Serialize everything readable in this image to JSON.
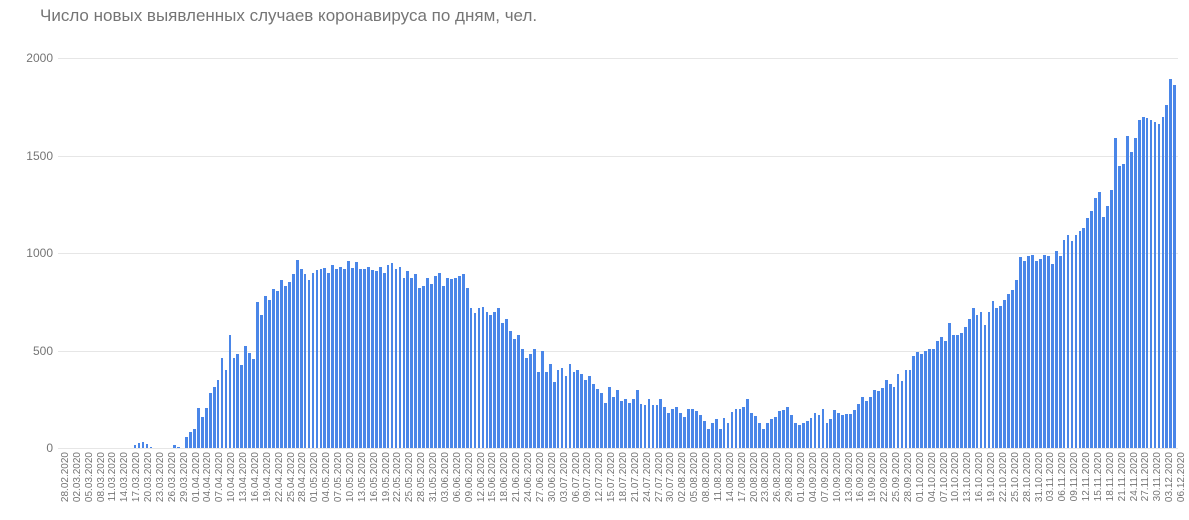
{
  "chart": {
    "type": "bar",
    "title": "Число новых выявленных случаев коронавируса по дням, чел.",
    "title_fontsize": 17,
    "title_color": "#757575",
    "background_color": "#ffffff",
    "bar_color": "#4a86e8",
    "grid_color": "#e6e6e6",
    "axis_label_color": "#757575",
    "axis_label_fontsize": 12,
    "xlabel_fontsize": 10,
    "xlabel_rotation": -90,
    "bar_width": 0.7,
    "ylim": [
      0,
      2000
    ],
    "ytick_step": 500,
    "yticks": [
      0,
      500,
      1000,
      1500,
      2000
    ],
    "xlabel_step": 3,
    "categories": [
      "28.02.2020",
      "29.02.2020",
      "01.03.2020",
      "02.03.2020",
      "03.03.2020",
      "04.03.2020",
      "05.03.2020",
      "06.03.2020",
      "07.03.2020",
      "08.03.2020",
      "09.03.2020",
      "10.03.2020",
      "11.03.2020",
      "12.03.2020",
      "13.03.2020",
      "14.03.2020",
      "15.03.2020",
      "16.03.2020",
      "17.03.2020",
      "18.03.2020",
      "19.03.2020",
      "20.03.2020",
      "21.03.2020",
      "22.03.2020",
      "23.03.2020",
      "24.03.2020",
      "25.03.2020",
      "26.03.2020",
      "27.03.2020",
      "28.03.2020",
      "29.03.2020",
      "30.03.2020",
      "31.03.2020",
      "01.04.2020",
      "02.04.2020",
      "03.04.2020",
      "04.04.2020",
      "05.04.2020",
      "06.04.2020",
      "07.04.2020",
      "08.04.2020",
      "09.04.2020",
      "10.04.2020",
      "11.04.2020",
      "12.04.2020",
      "13.04.2020",
      "14.04.2020",
      "15.04.2020",
      "16.04.2020",
      "17.04.2020",
      "18.04.2020",
      "19.04.2020",
      "20.04.2020",
      "21.04.2020",
      "22.04.2020",
      "23.04.2020",
      "24.04.2020",
      "25.04.2020",
      "26.04.2020",
      "27.04.2020",
      "28.04.2020",
      "29.04.2020",
      "30.04.2020",
      "01.05.2020",
      "02.05.2020",
      "03.05.2020",
      "04.05.2020",
      "05.05.2020",
      "06.05.2020",
      "07.05.2020",
      "08.05.2020",
      "09.05.2020",
      "10.05.2020",
      "11.05.2020",
      "12.05.2020",
      "13.05.2020",
      "14.05.2020",
      "15.05.2020",
      "16.05.2020",
      "17.05.2020",
      "18.05.2020",
      "19.05.2020",
      "20.05.2020",
      "21.05.2020",
      "22.05.2020",
      "23.05.2020",
      "24.05.2020",
      "25.05.2020",
      "26.05.2020",
      "27.05.2020",
      "28.05.2020",
      "29.05.2020",
      "30.05.2020",
      "31.05.2020",
      "01.06.2020",
      "02.06.2020",
      "03.06.2020",
      "04.06.2020",
      "05.06.2020",
      "06.06.2020",
      "07.06.2020",
      "08.06.2020",
      "09.06.2020",
      "10.06.2020",
      "11.06.2020",
      "12.06.2020",
      "13.06.2020",
      "14.06.2020",
      "15.06.2020",
      "16.06.2020",
      "17.06.2020",
      "18.06.2020",
      "19.06.2020",
      "20.06.2020",
      "21.06.2020",
      "22.06.2020",
      "23.06.2020",
      "24.06.2020",
      "25.06.2020",
      "26.06.2020",
      "27.06.2020",
      "28.06.2020",
      "29.06.2020",
      "30.06.2020",
      "01.07.2020",
      "02.07.2020",
      "03.07.2020",
      "04.07.2020",
      "05.07.2020",
      "06.07.2020",
      "07.07.2020",
      "08.07.2020",
      "09.07.2020",
      "10.07.2020",
      "11.07.2020",
      "12.07.2020",
      "13.07.2020",
      "14.07.2020",
      "15.07.2020",
      "16.07.2020",
      "17.07.2020",
      "18.07.2020",
      "19.07.2020",
      "20.07.2020",
      "21.07.2020",
      "22.07.2020",
      "23.07.2020",
      "24.07.2020",
      "25.07.2020",
      "26.07.2020",
      "27.07.2020",
      "28.07.2020",
      "29.07.2020",
      "30.07.2020",
      "31.07.2020",
      "01.08.2020",
      "02.08.2020",
      "03.08.2020",
      "04.08.2020",
      "05.08.2020",
      "06.08.2020",
      "07.08.2020",
      "08.08.2020",
      "09.08.2020",
      "10.08.2020",
      "11.08.2020",
      "12.08.2020",
      "13.08.2020",
      "14.08.2020",
      "15.08.2020",
      "16.08.2020",
      "17.08.2020",
      "18.08.2020",
      "19.08.2020",
      "20.08.2020",
      "21.08.2020",
      "22.08.2020",
      "23.08.2020",
      "24.08.2020",
      "25.08.2020",
      "26.08.2020",
      "27.08.2020",
      "28.08.2020",
      "29.08.2020",
      "30.08.2020",
      "31.08.2020",
      "01.09.2020",
      "02.09.2020",
      "03.09.2020",
      "04.09.2020",
      "05.09.2020",
      "06.09.2020",
      "07.09.2020",
      "08.09.2020",
      "09.09.2020",
      "10.09.2020",
      "11.09.2020",
      "12.09.2020",
      "13.09.2020",
      "14.09.2020",
      "15.09.2020",
      "16.09.2020",
      "17.09.2020",
      "18.09.2020",
      "19.09.2020",
      "20.09.2020",
      "21.09.2020",
      "22.09.2020",
      "23.09.2020",
      "24.09.2020",
      "25.09.2020",
      "26.09.2020",
      "27.09.2020",
      "28.09.2020",
      "29.09.2020",
      "30.09.2020",
      "01.10.2020",
      "02.10.2020",
      "03.10.2020",
      "04.10.2020",
      "05.10.2020",
      "06.10.2020",
      "07.10.2020",
      "08.10.2020",
      "09.10.2020",
      "10.10.2020",
      "11.10.2020",
      "12.10.2020",
      "13.10.2020",
      "14.10.2020",
      "15.10.2020",
      "16.10.2020",
      "17.10.2020",
      "18.10.2020",
      "19.10.2020",
      "20.10.2020",
      "21.10.2020",
      "22.10.2020",
      "23.10.2020",
      "24.10.2020",
      "25.10.2020",
      "26.10.2020",
      "27.10.2020",
      "28.10.2020",
      "29.10.2020",
      "30.10.2020",
      "31.10.2020",
      "01.11.2020",
      "02.11.2020",
      "03.11.2020",
      "04.11.2020",
      "05.11.2020",
      "06.11.2020",
      "07.11.2020",
      "08.11.2020",
      "09.11.2020",
      "10.11.2020",
      "11.11.2020",
      "12.11.2020",
      "13.11.2020",
      "14.11.2020",
      "15.11.2020",
      "16.11.2020",
      "17.11.2020",
      "18.11.2020",
      "19.11.2020",
      "20.11.2020",
      "21.11.2020",
      "22.11.2020",
      "23.11.2020",
      "24.11.2020",
      "25.11.2020",
      "26.11.2020",
      "27.11.2020",
      "28.11.2020",
      "29.11.2020",
      "30.11.2020",
      "01.12.2020",
      "02.12.2020",
      "03.12.2020",
      "04.12.2020",
      "05.12.2020",
      "06.12.2020"
    ],
    "values": [
      0,
      0,
      0,
      0,
      0,
      0,
      0,
      0,
      0,
      0,
      0,
      0,
      0,
      0,
      0,
      0,
      0,
      0,
      0,
      15,
      25,
      30,
      20,
      5,
      0,
      0,
      0,
      0,
      0,
      15,
      5,
      0,
      55,
      80,
      95,
      205,
      160,
      205,
      280,
      315,
      350,
      460,
      400,
      580,
      460,
      480,
      425,
      525,
      485,
      455,
      750,
      680,
      780,
      760,
      815,
      805,
      860,
      830,
      850,
      890,
      965,
      920,
      890,
      860,
      900,
      915,
      920,
      925,
      900,
      940,
      920,
      930,
      920,
      960,
      925,
      955,
      920,
      920,
      930,
      915,
      910,
      930,
      900,
      940,
      950,
      920,
      930,
      870,
      910,
      870,
      890,
      820,
      830,
      870,
      840,
      880,
      900,
      830,
      870,
      865,
      870,
      880,
      890,
      820,
      720,
      690,
      720,
      725,
      700,
      680,
      700,
      720,
      640,
      660,
      600,
      560,
      580,
      510,
      460,
      480,
      510,
      390,
      500,
      390,
      430,
      340,
      400,
      410,
      370,
      430,
      390,
      400,
      380,
      350,
      370,
      330,
      305,
      280,
      230,
      315,
      260,
      300,
      240,
      250,
      230,
      250,
      300,
      225,
      220,
      250,
      220,
      220,
      250,
      210,
      180,
      200,
      210,
      180,
      160,
      200,
      200,
      190,
      170,
      140,
      100,
      130,
      150,
      100,
      155,
      130,
      185,
      200,
      200,
      210,
      250,
      180,
      165,
      130,
      100,
      130,
      150,
      160,
      190,
      195,
      210,
      170,
      130,
      120,
      130,
      140,
      155,
      180,
      170,
      200,
      130,
      150,
      195,
      180,
      170,
      175,
      175,
      195,
      225,
      260,
      240,
      260,
      300,
      290,
      310,
      350,
      330,
      315,
      380,
      345,
      400,
      400,
      470,
      490,
      480,
      500,
      510,
      510,
      550,
      570,
      550,
      640,
      580,
      580,
      590,
      620,
      660,
      720,
      680,
      700,
      630,
      700,
      755,
      720,
      730,
      760,
      790,
      810,
      860,
      980,
      960,
      985,
      990,
      960,
      970,
      990,
      985,
      945,
      1010,
      985,
      1065,
      1090,
      1060,
      1090,
      1115,
      1130,
      1180,
      1215,
      1280,
      1315,
      1185,
      1240,
      1325,
      1590,
      1445,
      1455,
      1600,
      1520,
      1590,
      1680,
      1700,
      1690,
      1680,
      1670,
      1660,
      1700,
      1760,
      1890,
      1860
    ]
  }
}
